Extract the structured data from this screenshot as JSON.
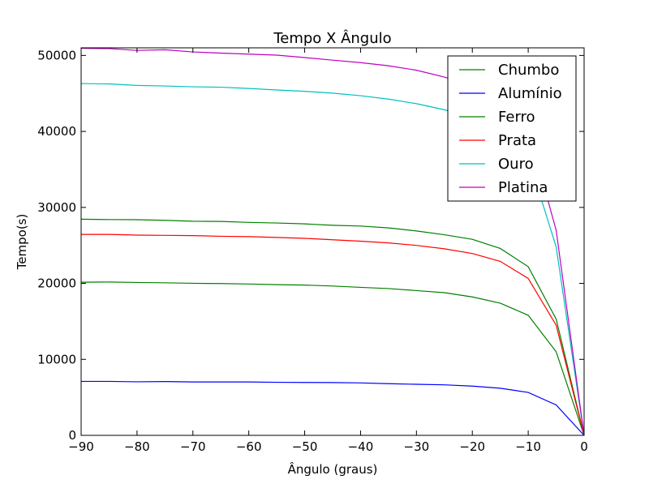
{
  "chart_data": {
    "type": "line",
    "title": "Tempo X Ângulo",
    "xlabel": "Ângulo (graus)",
    "ylabel": "Tempo(s)",
    "xlim": [
      -90,
      0
    ],
    "ylim": [
      0,
      51000
    ],
    "xticks": [
      -90,
      -80,
      -70,
      -60,
      -50,
      -40,
      -30,
      -20,
      -10,
      0
    ],
    "xtick_labels": [
      "−90",
      "−80",
      "−70",
      "−60",
      "−50",
      "−40",
      "−30",
      "−20",
      "−10",
      "0"
    ],
    "yticks": [
      0,
      10000,
      20000,
      30000,
      40000,
      50000
    ],
    "ytick_labels": [
      "0",
      "10000",
      "20000",
      "30000",
      "40000",
      "50000"
    ],
    "grid": false,
    "legend_position": "top-right",
    "x": [
      -90,
      -85,
      -80,
      -75,
      -70,
      -65,
      -60,
      -55,
      -50,
      -45,
      -40,
      -35,
      -30,
      -25,
      -20,
      -15,
      -10,
      -5,
      0
    ],
    "series": [
      {
        "name": "Chumbo",
        "color": "#008000",
        "values": [
          28450,
          28400,
          28380,
          28300,
          28180,
          28150,
          28030,
          27950,
          27830,
          27650,
          27550,
          27300,
          26900,
          26400,
          25800,
          24600,
          22200,
          15300,
          0
        ]
      },
      {
        "name": "Alumínio",
        "color": "#0000ff",
        "values": [
          7100,
          7100,
          7050,
          7080,
          7030,
          7030,
          7030,
          6980,
          6960,
          6950,
          6900,
          6800,
          6720,
          6650,
          6480,
          6200,
          5650,
          4000,
          0
        ]
      },
      {
        "name": "Ferro",
        "color": "#008000",
        "values": [
          20150,
          20180,
          20120,
          20080,
          20010,
          19980,
          19920,
          19830,
          19780,
          19650,
          19480,
          19320,
          19050,
          18780,
          18220,
          17400,
          15800,
          11000,
          0
        ]
      },
      {
        "name": "Prata",
        "color": "#ff0000",
        "values": [
          26450,
          26450,
          26350,
          26320,
          26290,
          26200,
          26150,
          26050,
          25930,
          25740,
          25550,
          25330,
          25000,
          24550,
          23930,
          22900,
          20650,
          14500,
          0
        ]
      },
      {
        "name": "Ouro",
        "color": "#00bfbf",
        "values": [
          46300,
          46250,
          46050,
          45980,
          45870,
          45820,
          45650,
          45450,
          45280,
          45040,
          44700,
          44250,
          43650,
          42850,
          41800,
          40100,
          36600,
          24800,
          0
        ]
      },
      {
        "name": "Platina",
        "color": "#bf00bf",
        "values": [
          50950,
          50900,
          50660,
          50750,
          50460,
          50310,
          50170,
          50040,
          49720,
          49380,
          49050,
          48640,
          48050,
          47150,
          46030,
          44200,
          40300,
          27000,
          0
        ]
      }
    ]
  }
}
